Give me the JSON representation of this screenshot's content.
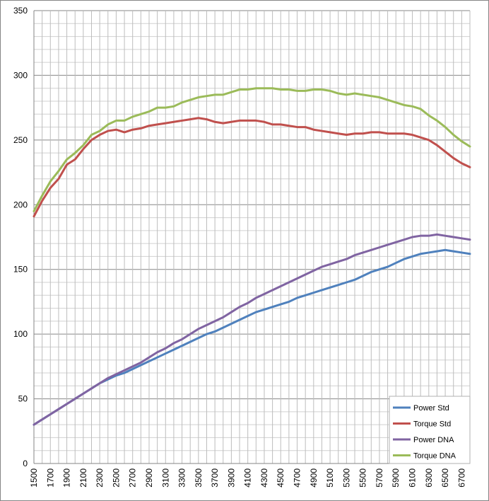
{
  "chart_data": {
    "type": "line",
    "title": "",
    "xlabel": "",
    "ylabel": "",
    "ylim": [
      0,
      350
    ],
    "y_ticks": [
      0,
      50,
      100,
      150,
      200,
      250,
      300,
      350
    ],
    "grid": true,
    "legend_position": "bottom-right",
    "x": [
      1500,
      1600,
      1700,
      1800,
      1900,
      2000,
      2100,
      2200,
      2300,
      2400,
      2500,
      2600,
      2700,
      2800,
      2900,
      3000,
      3100,
      3200,
      3300,
      3400,
      3500,
      3600,
      3700,
      3800,
      3900,
      4000,
      4100,
      4200,
      4300,
      4400,
      4500,
      4600,
      4700,
      4800,
      4900,
      5000,
      5100,
      5200,
      5300,
      5400,
      5500,
      5600,
      5700,
      5800,
      5900,
      6000,
      6100,
      6200,
      6300,
      6400,
      6500,
      6600,
      6700,
      6800
    ],
    "x_tick_labels": [
      "1500",
      "1700",
      "1900",
      "2100",
      "2300",
      "2500",
      "2700",
      "2900",
      "3100",
      "3300",
      "3500",
      "3700",
      "3900",
      "4100",
      "4300",
      "4500",
      "4700",
      "4900",
      "5100",
      "5300",
      "5500",
      "5700",
      "5900",
      "6100",
      "6300",
      "6500",
      "6700"
    ],
    "series": [
      {
        "name": "Power Std",
        "color": "#4f81bd",
        "values": [
          30,
          34,
          38,
          42,
          46,
          50,
          54,
          58,
          62,
          65,
          68,
          70,
          73,
          76,
          79,
          82,
          85,
          88,
          91,
          94,
          97,
          100,
          102,
          105,
          108,
          111,
          114,
          117,
          119,
          121,
          123,
          125,
          128,
          130,
          132,
          134,
          136,
          138,
          140,
          142,
          145,
          148,
          150,
          152,
          155,
          158,
          160,
          162,
          163,
          164,
          165,
          164,
          163,
          162
        ]
      },
      {
        "name": "Torque Std",
        "color": "#c0504d",
        "values": [
          191,
          203,
          213,
          220,
          231,
          235,
          243,
          250,
          254,
          257,
          258,
          256,
          258,
          259,
          261,
          262,
          263,
          264,
          265,
          266,
          267,
          266,
          264,
          263,
          264,
          265,
          265,
          265,
          264,
          262,
          262,
          261,
          260,
          260,
          258,
          257,
          256,
          255,
          254,
          255,
          255,
          256,
          256,
          255,
          255,
          255,
          254,
          252,
          250,
          246,
          241,
          236,
          232,
          229
        ]
      },
      {
        "name": "Power DNA",
        "color": "#8064a2",
        "values": [
          30,
          34,
          38,
          42,
          46,
          50,
          54,
          58,
          62,
          66,
          69,
          72,
          75,
          78,
          82,
          86,
          89,
          93,
          96,
          100,
          104,
          107,
          110,
          113,
          117,
          121,
          124,
          128,
          131,
          134,
          137,
          140,
          143,
          146,
          149,
          152,
          154,
          156,
          158,
          161,
          163,
          165,
          167,
          169,
          171,
          173,
          175,
          176,
          176,
          177,
          176,
          175,
          174,
          173
        ]
      },
      {
        "name": "Torque DNA",
        "color": "#9bbb59",
        "values": [
          195,
          207,
          218,
          226,
          235,
          240,
          246,
          254,
          257,
          262,
          265,
          265,
          268,
          270,
          272,
          275,
          275,
          276,
          279,
          281,
          283,
          284,
          285,
          285,
          287,
          289,
          289,
          290,
          290,
          290,
          289,
          289,
          288,
          288,
          289,
          289,
          288,
          286,
          285,
          286,
          285,
          284,
          283,
          281,
          279,
          277,
          276,
          274,
          269,
          265,
          260,
          254,
          249,
          245
        ]
      }
    ]
  }
}
